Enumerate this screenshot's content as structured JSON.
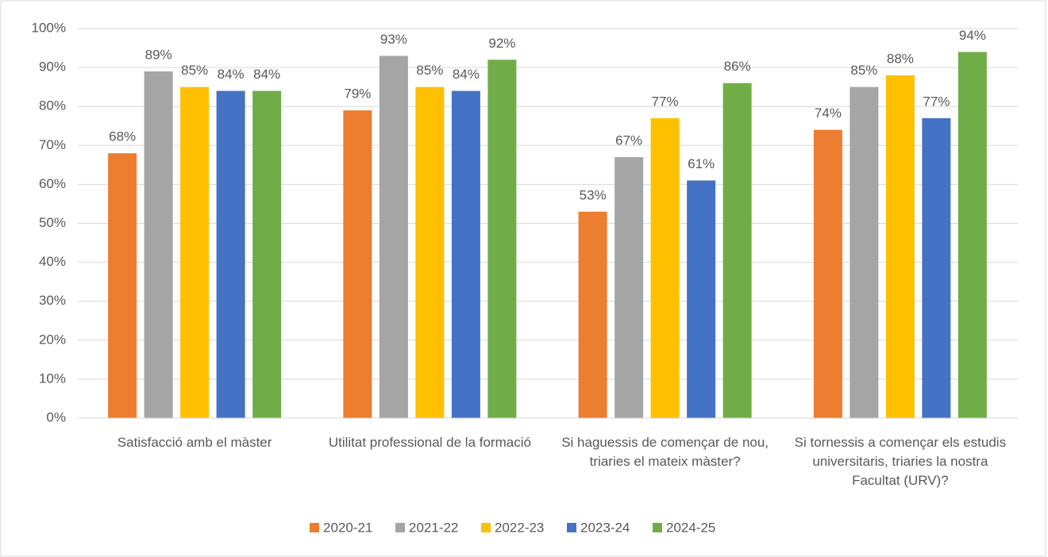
{
  "chart_data": {
    "type": "bar",
    "categories": [
      "Satisfacció amb el màster",
      "Utilitat professional de la formació",
      "Si haguessis de començar de nou, triaries el mateix màster?",
      "Si tornessis a començar els estudis universitaris, triaries la nostra Facultat (URV)?"
    ],
    "series": [
      {
        "name": "2020-21",
        "color": "#ed7d31",
        "values": [
          68,
          79,
          53,
          74
        ],
        "value_labels": [
          "68%",
          "79%",
          "53%",
          "74%"
        ]
      },
      {
        "name": "2021-22",
        "color": "#a5a5a5",
        "values": [
          89,
          93,
          67,
          85
        ],
        "value_labels": [
          "89%",
          "93%",
          "67%",
          "85%"
        ]
      },
      {
        "name": "2022-23",
        "color": "#ffc000",
        "values": [
          85,
          85,
          77,
          88
        ],
        "value_labels": [
          "85%",
          "85%",
          "77%",
          "88%"
        ]
      },
      {
        "name": "2023-24",
        "color": "#4472c4",
        "values": [
          84,
          84,
          61,
          77
        ],
        "value_labels": [
          "84%",
          "84%",
          "61%",
          "77%"
        ]
      },
      {
        "name": "2024-25",
        "color": "#70ad47",
        "values": [
          84,
          92,
          86,
          94
        ],
        "value_labels": [
          "84%",
          "92%",
          "86%",
          "94%"
        ]
      }
    ],
    "ylim": [
      0,
      100
    ],
    "yticks": [
      {
        "value": 0,
        "label": "0%"
      },
      {
        "value": 10,
        "label": "10%"
      },
      {
        "value": 20,
        "label": "20%"
      },
      {
        "value": 30,
        "label": "30%"
      },
      {
        "value": 40,
        "label": "40%"
      },
      {
        "value": 50,
        "label": "50%"
      },
      {
        "value": 60,
        "label": "60%"
      },
      {
        "value": 70,
        "label": "70%"
      },
      {
        "value": 80,
        "label": "80%"
      },
      {
        "value": 90,
        "label": "90%"
      },
      {
        "value": 100,
        "label": "100%"
      }
    ],
    "grid": true,
    "legend": "bottom"
  }
}
